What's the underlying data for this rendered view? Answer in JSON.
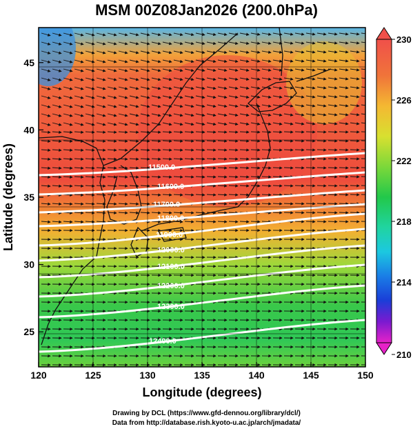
{
  "title": "MSM 00Z08Jan2026 (200.0hPa)",
  "map": {
    "xlabel": "Longitude (degrees)",
    "ylabel": "Latitude  (degrees)",
    "lon_ticks": [
      "120",
      "125",
      "130",
      "135",
      "140",
      "145",
      "150"
    ],
    "lat_ticks": [
      "25",
      "30",
      "35",
      "40",
      "45"
    ],
    "lon_range": [
      120,
      150
    ],
    "lat_range": [
      22.4,
      47.6
    ],
    "field": "temperature (shaded)",
    "contours": [
      "11500.0",
      "11600.0",
      "11700.0",
      "11800.0",
      "11900.0",
      "12000.0",
      "12100.0",
      "12200.0",
      "12300.0",
      "12400.0"
    ],
    "vectors": "wind"
  },
  "colorbar": {
    "min": 210,
    "max": 230,
    "labels": [
      "230",
      "226",
      "222",
      "218",
      "214",
      "210"
    ]
  },
  "footer": {
    "line1": "Drawing by DCL (https://www.gfd-dennou.org/library/dcl/)",
    "line2": "Data from http://database.rish.kyoto-u.ac.jp/arch/jmadata/"
  }
}
